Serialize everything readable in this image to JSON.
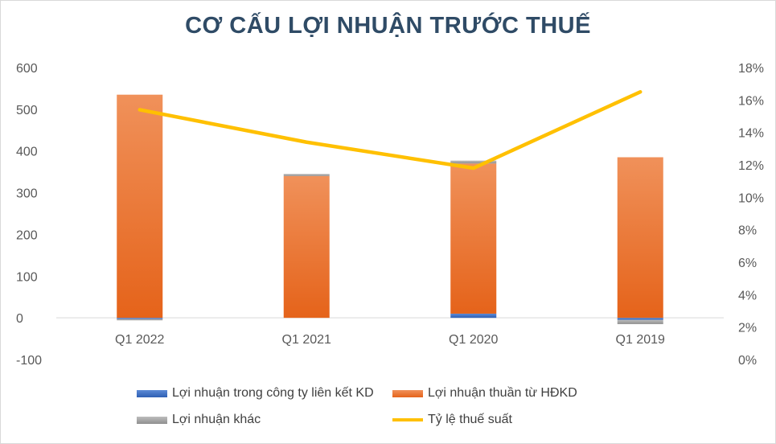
{
  "chart_data": {
    "type": "bar",
    "stacked": true,
    "title": "CƠ CẤU LỢI NHUẬN TRƯỚC THUẾ",
    "xlabel": "",
    "ylabel": "",
    "categories": [
      "Q1 2022",
      "Q1 2021",
      "Q1 2020",
      "Q1 2019"
    ],
    "series": [
      {
        "name": "Lợi nhuận trong công ty liên kết KD",
        "type": "bar",
        "axis": "left",
        "color": "#4472c4",
        "values": [
          -3,
          0,
          10,
          -5
        ]
      },
      {
        "name": "Lợi nhuận thuần từ HĐKD",
        "type": "bar",
        "axis": "left",
        "color": "#ed7d31",
        "values": [
          535,
          340,
          360,
          385
        ]
      },
      {
        "name": "Lợi nhuận khác",
        "type": "bar",
        "axis": "left",
        "color": "#a5a5a5",
        "values": [
          -2,
          5,
          7,
          -10
        ]
      },
      {
        "name": "Tỷ lệ thuế suất",
        "type": "line",
        "axis": "right",
        "color": "#ffc000",
        "values": [
          0.154,
          0.134,
          0.118,
          0.165
        ]
      }
    ],
    "ylim": [
      -100,
      600
    ],
    "y_ticks": [
      "600",
      "500",
      "400",
      "300",
      "200",
      "100",
      "0",
      "-100"
    ],
    "y2lim": [
      0,
      0.18
    ],
    "y2_ticks": [
      "18%",
      "16%",
      "14%",
      "12%",
      "10%",
      "8%",
      "6%",
      "4%",
      "2%",
      "0%"
    ],
    "grid": false,
    "legend_position": "bottom"
  }
}
